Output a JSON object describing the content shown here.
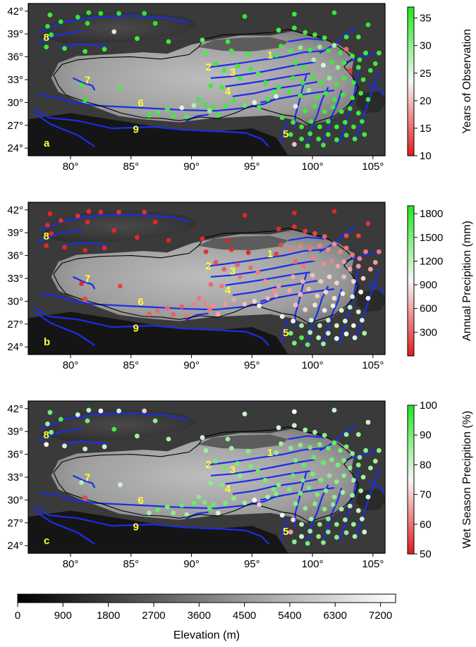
{
  "panels": [
    {
      "id": "a",
      "label": "a",
      "colorbar": {
        "title": "Years of Observation",
        "min": 10,
        "max": 37,
        "ticks": [
          10,
          15,
          20,
          25,
          30,
          35
        ],
        "low_color": "#e31a1c",
        "mid_color": "#f7f7f7",
        "high_color": "#1ee81e"
      }
    },
    {
      "id": "b",
      "label": "b",
      "colorbar": {
        "title": "Annual Precipition (mm)",
        "min": 0,
        "max": 1900,
        "ticks": [
          300,
          600,
          900,
          1200,
          1500,
          1800
        ],
        "low_color": "#e31a1c",
        "mid_color": "#f7f7f7",
        "high_color": "#1ee81e"
      }
    },
    {
      "id": "c",
      "label": "c",
      "colorbar": {
        "title": "Wet Season Precipition (%)",
        "min": 50,
        "max": 100,
        "ticks": [
          50,
          60,
          70,
          80,
          90,
          100
        ],
        "low_color": "#e31a1c",
        "mid_color": "#f7f7f7",
        "high_color": "#1ee81e"
      }
    }
  ],
  "map": {
    "lon_range": [
      76.5,
      106
    ],
    "lat_range": [
      23,
      43
    ],
    "lon_ticks": [
      80,
      85,
      90,
      95,
      100,
      105
    ],
    "lat_ticks": [
      24,
      27,
      30,
      33,
      36,
      39,
      42
    ],
    "degree_symbol": "°",
    "contour_color": "#1a2ee6",
    "boundary_color": "#000000",
    "region_label_color": "#ffff33",
    "region_labels": [
      {
        "text": "1",
        "lon": 96.5,
        "lat": 35.8
      },
      {
        "text": "2",
        "lon": 91.4,
        "lat": 34.2
      },
      {
        "text": "3",
        "lon": 93.4,
        "lat": 33.5
      },
      {
        "text": "4",
        "lon": 93.0,
        "lat": 31.0
      },
      {
        "text": "5",
        "lon": 97.8,
        "lat": 25.4
      },
      {
        "text": "6",
        "lon": 85.8,
        "lat": 29.5
      },
      {
        "text": "7",
        "lon": 81.4,
        "lat": 32.5
      },
      {
        "text": "8",
        "lon": 78.0,
        "lat": 38.1
      },
      {
        "text": "9",
        "lon": 85.4,
        "lat": 26.0
      }
    ]
  },
  "elevation_bar": {
    "title": "Elevation (m)",
    "min": 0,
    "max": 7500,
    "ticks": [
      0,
      900,
      1800,
      2700,
      3600,
      4500,
      5400,
      6300,
      7200
    ]
  },
  "chart_data": {
    "type": "scatter",
    "x_label": "",
    "y_label": "",
    "stations": [
      {
        "lon": 78.3,
        "lat": 41.5,
        "years": 35,
        "precip": 60,
        "wet": 90
      },
      {
        "lon": 79.2,
        "lat": 40.6,
        "years": 36,
        "precip": 80,
        "wet": 95
      },
      {
        "lon": 78.1,
        "lat": 40.0,
        "years": 36,
        "precip": 70,
        "wet": 85
      },
      {
        "lon": 78.4,
        "lat": 38.9,
        "years": 36,
        "precip": 50,
        "wet": 88
      },
      {
        "lon": 78.0,
        "lat": 37.3,
        "years": 35,
        "precip": 60,
        "wet": 75
      },
      {
        "lon": 79.5,
        "lat": 37.1,
        "years": 35,
        "precip": 50,
        "wet": 80
      },
      {
        "lon": 80.6,
        "lat": 41.2,
        "years": 36,
        "precip": 90,
        "wet": 80
      },
      {
        "lon": 81.4,
        "lat": 40.4,
        "years": 36,
        "precip": 70,
        "wet": 90
      },
      {
        "lon": 81.5,
        "lat": 41.8,
        "years": 36,
        "precip": 70,
        "wet": 82
      },
      {
        "lon": 81.2,
        "lat": 36.7,
        "years": 35,
        "precip": 40,
        "wet": 80
      },
      {
        "lon": 82.5,
        "lat": 41.7,
        "years": 36,
        "precip": 70,
        "wet": 75
      },
      {
        "lon": 82.8,
        "lat": 37.0,
        "years": 35,
        "precip": 50,
        "wet": 80
      },
      {
        "lon": 83.6,
        "lat": 39.3,
        "years": 22,
        "precip": 50,
        "wet": 95
      },
      {
        "lon": 84.0,
        "lat": 41.7,
        "years": 36,
        "precip": 100,
        "wet": 80
      },
      {
        "lon": 85.5,
        "lat": 38.4,
        "years": 35,
        "precip": 50,
        "wet": 85
      },
      {
        "lon": 86.1,
        "lat": 41.7,
        "years": 36,
        "precip": 80,
        "wet": 70
      },
      {
        "lon": 87.0,
        "lat": 40.4,
        "years": 36,
        "precip": 60,
        "wet": 88
      },
      {
        "lon": 88.1,
        "lat": 38.0,
        "years": 35,
        "precip": 40,
        "wet": 85
      },
      {
        "lon": 80.9,
        "lat": 32.3,
        "years": 35,
        "precip": 70,
        "wet": 83
      },
      {
        "lon": 81.2,
        "lat": 30.3,
        "years": 36,
        "precip": 180,
        "wet": 55
      },
      {
        "lon": 84.1,
        "lat": 32.0,
        "years": 34,
        "precip": 180,
        "wet": 80
      },
      {
        "lon": 86.5,
        "lat": 28.3,
        "years": 35,
        "precip": 300,
        "wet": 85
      },
      {
        "lon": 87.2,
        "lat": 28.7,
        "years": 34,
        "precip": 350,
        "wet": 92
      },
      {
        "lon": 88.0,
        "lat": 29.1,
        "years": 34,
        "precip": 350,
        "wet": 90
      },
      {
        "lon": 88.5,
        "lat": 28.3,
        "years": 35,
        "precip": 300,
        "wet": 88
      },
      {
        "lon": 89.2,
        "lat": 29.3,
        "years": 25,
        "precip": 300,
        "wet": 92
      },
      {
        "lon": 89.6,
        "lat": 28.1,
        "years": 34,
        "precip": 400,
        "wet": 85
      },
      {
        "lon": 90.2,
        "lat": 29.6,
        "years": 28,
        "precip": 450,
        "wet": 92
      },
      {
        "lon": 90.6,
        "lat": 30.4,
        "years": 35,
        "precip": 400,
        "wet": 88
      },
      {
        "lon": 91.1,
        "lat": 29.7,
        "years": 35,
        "precip": 450,
        "wet": 90
      },
      {
        "lon": 91.5,
        "lat": 28.9,
        "years": 30,
        "precip": 400,
        "wet": 93
      },
      {
        "lon": 91.8,
        "lat": 29.4,
        "years": 35,
        "precip": 500,
        "wet": 92
      },
      {
        "lon": 92.2,
        "lat": 28.3,
        "years": 35,
        "precip": 600,
        "wet": 80
      },
      {
        "lon": 92.8,
        "lat": 29.6,
        "years": 35,
        "precip": 550,
        "wet": 90
      },
      {
        "lon": 93.5,
        "lat": 30.2,
        "years": 35,
        "precip": 600,
        "wet": 88
      },
      {
        "lon": 94.4,
        "lat": 29.6,
        "years": 33,
        "precip": 700,
        "wet": 85
      },
      {
        "lon": 95.2,
        "lat": 30.0,
        "years": 25,
        "precip": 800,
        "wet": 75
      },
      {
        "lon": 95.6,
        "lat": 29.4,
        "years": 35,
        "precip": 900,
        "wet": 70
      },
      {
        "lon": 96.3,
        "lat": 30.4,
        "years": 35,
        "precip": 650,
        "wet": 85
      },
      {
        "lon": 97.0,
        "lat": 30.8,
        "years": 25,
        "precip": 600,
        "wet": 88
      },
      {
        "lon": 96.8,
        "lat": 31.4,
        "years": 34,
        "precip": 500,
        "wet": 90
      },
      {
        "lon": 91.2,
        "lat": 36.5,
        "years": 34,
        "precip": 100,
        "wet": 85
      },
      {
        "lon": 90.9,
        "lat": 38.2,
        "years": 33,
        "precip": 50,
        "wet": 80
      },
      {
        "lon": 93.0,
        "lat": 38.0,
        "years": 35,
        "precip": 40,
        "wet": 85
      },
      {
        "lon": 94.4,
        "lat": 41.3,
        "years": 36,
        "precip": 40,
        "wet": 80
      },
      {
        "lon": 94.7,
        "lat": 36.4,
        "years": 35,
        "precip": 50,
        "wet": 88
      },
      {
        "lon": 93.3,
        "lat": 36.8,
        "years": 35,
        "precip": 80,
        "wet": 85
      },
      {
        "lon": 92.0,
        "lat": 35.1,
        "years": 35,
        "precip": 250,
        "wet": 90
      },
      {
        "lon": 92.7,
        "lat": 34.2,
        "years": 35,
        "precip": 300,
        "wet": 92
      },
      {
        "lon": 93.8,
        "lat": 34.8,
        "years": 35,
        "precip": 300,
        "wet": 90
      },
      {
        "lon": 94.9,
        "lat": 34.4,
        "years": 35,
        "precip": 350,
        "wet": 90
      },
      {
        "lon": 95.5,
        "lat": 33.8,
        "years": 34,
        "precip": 450,
        "wet": 92
      },
      {
        "lon": 94.0,
        "lat": 33.2,
        "years": 35,
        "precip": 400,
        "wet": 88
      },
      {
        "lon": 96.1,
        "lat": 32.6,
        "years": 35,
        "precip": 500,
        "wet": 90
      },
      {
        "lon": 97.2,
        "lat": 32.0,
        "years": 35,
        "precip": 550,
        "wet": 88
      },
      {
        "lon": 92.5,
        "lat": 32.0,
        "years": 35,
        "precip": 400,
        "wet": 90
      },
      {
        "lon": 91.6,
        "lat": 32.2,
        "years": 35,
        "precip": 350,
        "wet": 88
      },
      {
        "lon": 97.0,
        "lat": 36.2,
        "years": 35,
        "precip": 150,
        "wet": 87
      },
      {
        "lon": 97.4,
        "lat": 37.4,
        "years": 35,
        "precip": 200,
        "wet": 85
      },
      {
        "lon": 97.2,
        "lat": 39.5,
        "years": 34,
        "precip": 50,
        "wet": 80
      },
      {
        "lon": 98.5,
        "lat": 41.6,
        "years": 35,
        "precip": 40,
        "wet": 75
      },
      {
        "lon": 98.5,
        "lat": 39.8,
        "years": 35,
        "precip": 80,
        "wet": 80
      },
      {
        "lon": 99.4,
        "lat": 39.2,
        "years": 35,
        "precip": 130,
        "wet": 85
      },
      {
        "lon": 100.2,
        "lat": 38.9,
        "years": 35,
        "precip": 200,
        "wet": 85
      },
      {
        "lon": 101.0,
        "lat": 38.5,
        "years": 35,
        "precip": 300,
        "wet": 88
      },
      {
        "lon": 101.8,
        "lat": 41.8,
        "years": 36,
        "precip": 40,
        "wet": 80
      },
      {
        "lon": 102.8,
        "lat": 38.6,
        "years": 35,
        "precip": 200,
        "wet": 85
      },
      {
        "lon": 103.8,
        "lat": 38.6,
        "years": 35,
        "precip": 180,
        "wet": 85
      },
      {
        "lon": 104.6,
        "lat": 40.2,
        "years": 36,
        "precip": 100,
        "wet": 80
      },
      {
        "lon": 105.5,
        "lat": 36.5,
        "years": 35,
        "precip": 400,
        "wet": 88
      },
      {
        "lon": 98.2,
        "lat": 36.8,
        "years": 34,
        "precip": 400,
        "wet": 88
      },
      {
        "lon": 99.0,
        "lat": 37.2,
        "years": 30,
        "precip": 450,
        "wet": 88
      },
      {
        "lon": 99.8,
        "lat": 36.9,
        "years": 35,
        "precip": 400,
        "wet": 90
      },
      {
        "lon": 100.6,
        "lat": 37.3,
        "years": 30,
        "precip": 450,
        "wet": 90
      },
      {
        "lon": 101.3,
        "lat": 36.8,
        "years": 35,
        "precip": 500,
        "wet": 92
      },
      {
        "lon": 101.8,
        "lat": 37.5,
        "years": 28,
        "precip": 500,
        "wet": 92
      },
      {
        "lon": 102.3,
        "lat": 36.5,
        "years": 35,
        "precip": 450,
        "wet": 90
      },
      {
        "lon": 102.8,
        "lat": 37.0,
        "years": 15,
        "precip": 400,
        "wet": 90
      },
      {
        "lon": 103.3,
        "lat": 36.1,
        "years": 35,
        "precip": 400,
        "wet": 88
      },
      {
        "lon": 103.9,
        "lat": 35.6,
        "years": 35,
        "precip": 450,
        "wet": 88
      },
      {
        "lon": 104.4,
        "lat": 36.5,
        "years": 35,
        "precip": 400,
        "wet": 88
      },
      {
        "lon": 105.2,
        "lat": 35.1,
        "years": 35,
        "precip": 550,
        "wet": 85
      },
      {
        "lon": 98.6,
        "lat": 35.2,
        "years": 35,
        "precip": 350,
        "wet": 90
      },
      {
        "lon": 99.3,
        "lat": 34.6,
        "years": 35,
        "precip": 400,
        "wet": 92
      },
      {
        "lon": 100.1,
        "lat": 35.6,
        "years": 28,
        "precip": 450,
        "wet": 92
      },
      {
        "lon": 100.9,
        "lat": 34.9,
        "years": 25,
        "precip": 500,
        "wet": 92
      },
      {
        "lon": 101.6,
        "lat": 35.3,
        "years": 35,
        "precip": 450,
        "wet": 90
      },
      {
        "lon": 102.1,
        "lat": 34.6,
        "years": 30,
        "precip": 600,
        "wet": 90
      },
      {
        "lon": 102.6,
        "lat": 35.2,
        "years": 35,
        "precip": 550,
        "wet": 90
      },
      {
        "lon": 103.1,
        "lat": 34.2,
        "years": 12,
        "precip": 600,
        "wet": 88
      },
      {
        "lon": 103.8,
        "lat": 34.6,
        "years": 35,
        "precip": 550,
        "wet": 88
      },
      {
        "lon": 104.8,
        "lat": 34.2,
        "years": 35,
        "precip": 600,
        "wet": 85
      },
      {
        "lon": 98.4,
        "lat": 33.2,
        "years": 35,
        "precip": 600,
        "wet": 92
      },
      {
        "lon": 99.2,
        "lat": 32.6,
        "years": 35,
        "precip": 650,
        "wet": 90
      },
      {
        "lon": 100.0,
        "lat": 33.4,
        "years": 35,
        "precip": 700,
        "wet": 90
      },
      {
        "lon": 100.7,
        "lat": 32.6,
        "years": 35,
        "precip": 750,
        "wet": 90
      },
      {
        "lon": 101.4,
        "lat": 33.2,
        "years": 30,
        "precip": 800,
        "wet": 88
      },
      {
        "lon": 102.0,
        "lat": 32.4,
        "years": 35,
        "precip": 800,
        "wet": 88
      },
      {
        "lon": 102.6,
        "lat": 33.2,
        "years": 35,
        "precip": 700,
        "wet": 88
      },
      {
        "lon": 103.4,
        "lat": 32.6,
        "years": 35,
        "precip": 800,
        "wet": 85
      },
      {
        "lon": 104.2,
        "lat": 33.0,
        "years": 35,
        "precip": 800,
        "wet": 85
      },
      {
        "lon": 98.1,
        "lat": 31.4,
        "years": 35,
        "precip": 600,
        "wet": 90
      },
      {
        "lon": 99.0,
        "lat": 30.9,
        "years": 35,
        "precip": 650,
        "wet": 90
      },
      {
        "lon": 99.7,
        "lat": 31.6,
        "years": 30,
        "precip": 700,
        "wet": 90
      },
      {
        "lon": 100.4,
        "lat": 30.7,
        "years": 35,
        "precip": 750,
        "wet": 90
      },
      {
        "lon": 101.1,
        "lat": 31.2,
        "years": 35,
        "precip": 800,
        "wet": 88
      },
      {
        "lon": 101.8,
        "lat": 30.4,
        "years": 35,
        "precip": 850,
        "wet": 88
      },
      {
        "lon": 102.5,
        "lat": 31.0,
        "years": 35,
        "precip": 900,
        "wet": 85
      },
      {
        "lon": 103.3,
        "lat": 30.6,
        "years": 35,
        "precip": 1100,
        "wet": 85
      },
      {
        "lon": 104.0,
        "lat": 31.2,
        "years": 35,
        "precip": 1000,
        "wet": 85
      },
      {
        "lon": 104.6,
        "lat": 30.4,
        "years": 35,
        "precip": 1000,
        "wet": 80
      },
      {
        "lon": 98.6,
        "lat": 29.5,
        "years": 25,
        "precip": 700,
        "wet": 88
      },
      {
        "lon": 99.4,
        "lat": 28.9,
        "years": 35,
        "precip": 800,
        "wet": 88
      },
      {
        "lon": 100.2,
        "lat": 29.5,
        "years": 35,
        "precip": 850,
        "wet": 88
      },
      {
        "lon": 101.0,
        "lat": 28.8,
        "years": 35,
        "precip": 900,
        "wet": 88
      },
      {
        "lon": 101.7,
        "lat": 29.4,
        "years": 35,
        "precip": 1000,
        "wet": 88
      },
      {
        "lon": 102.4,
        "lat": 28.8,
        "years": 35,
        "precip": 1100,
        "wet": 85
      },
      {
        "lon": 103.1,
        "lat": 29.2,
        "years": 35,
        "precip": 1200,
        "wet": 82
      },
      {
        "lon": 103.8,
        "lat": 28.6,
        "years": 35,
        "precip": 1100,
        "wet": 80
      },
      {
        "lon": 97.5,
        "lat": 28.0,
        "years": 35,
        "precip": 1000,
        "wet": 75
      },
      {
        "lon": 98.4,
        "lat": 27.4,
        "years": 35,
        "precip": 1000,
        "wet": 72
      },
      {
        "lon": 99.1,
        "lat": 26.8,
        "years": 35,
        "precip": 1300,
        "wet": 82
      },
      {
        "lon": 99.9,
        "lat": 27.5,
        "years": 35,
        "precip": 1100,
        "wet": 85
      },
      {
        "lon": 100.6,
        "lat": 26.8,
        "years": 35,
        "precip": 1200,
        "wet": 88
      },
      {
        "lon": 101.3,
        "lat": 27.5,
        "years": 35,
        "precip": 1200,
        "wet": 88
      },
      {
        "lon": 102.0,
        "lat": 26.8,
        "years": 35,
        "precip": 1100,
        "wet": 88
      },
      {
        "lon": 102.7,
        "lat": 27.4,
        "years": 35,
        "precip": 1100,
        "wet": 85
      },
      {
        "lon": 103.4,
        "lat": 26.8,
        "years": 35,
        "precip": 1000,
        "wet": 85
      },
      {
        "lon": 104.1,
        "lat": 27.5,
        "years": 35,
        "precip": 1100,
        "wet": 80
      },
      {
        "lon": 98.2,
        "lat": 25.8,
        "years": 35,
        "precip": 1500,
        "wet": 65
      },
      {
        "lon": 99.1,
        "lat": 25.2,
        "years": 35,
        "precip": 1700,
        "wet": 80
      },
      {
        "lon": 99.8,
        "lat": 25.9,
        "years": 35,
        "precip": 1300,
        "wet": 85
      },
      {
        "lon": 100.5,
        "lat": 25.2,
        "years": 35,
        "precip": 1200,
        "wet": 88
      },
      {
        "lon": 101.3,
        "lat": 25.8,
        "years": 35,
        "precip": 1100,
        "wet": 88
      },
      {
        "lon": 102.0,
        "lat": 25.1,
        "years": 35,
        "precip": 1000,
        "wet": 88
      },
      {
        "lon": 102.8,
        "lat": 25.7,
        "years": 35,
        "precip": 1000,
        "wet": 88
      },
      {
        "lon": 103.5,
        "lat": 25.2,
        "years": 35,
        "precip": 1100,
        "wet": 85
      },
      {
        "lon": 104.3,
        "lat": 25.8,
        "years": 35,
        "precip": 1300,
        "wet": 80
      },
      {
        "lon": 98.5,
        "lat": 24.5,
        "years": 20,
        "precip": 1500,
        "wet": 88
      },
      {
        "lon": 99.6,
        "lat": 24.3,
        "years": 35,
        "precip": 1600,
        "wet": 90
      },
      {
        "lon": 100.9,
        "lat": 24.4,
        "years": 35,
        "precip": 1300,
        "wet": 88
      }
    ]
  }
}
